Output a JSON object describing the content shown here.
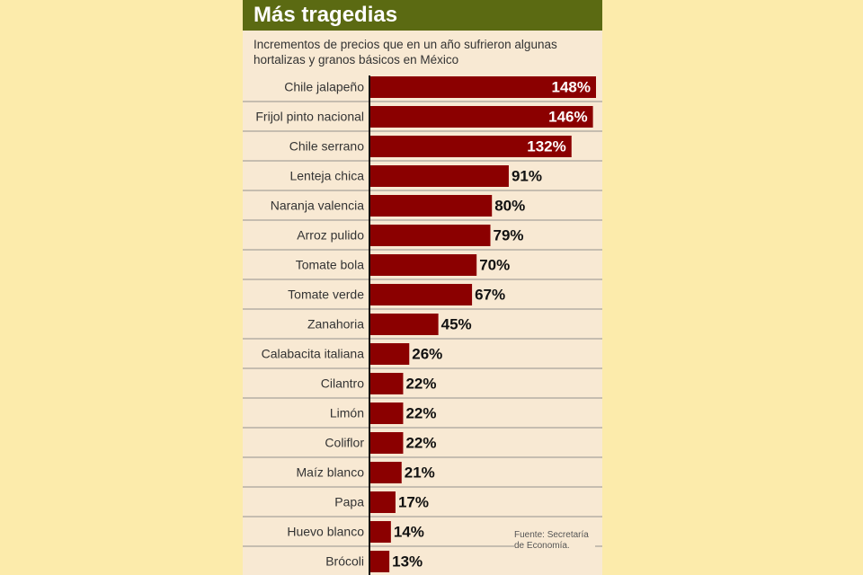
{
  "chart_data": {
    "type": "bar",
    "orientation": "horizontal",
    "title": "Más tragedias",
    "subtitle": "Incrementos de precios que en un año sufrieron algunas hortalizas y granos básicos en México",
    "categories": [
      "Chile jalapeño",
      "Frijol pinto nacional",
      "Chile serrano",
      "Lenteja chica",
      "Naranja valencia",
      "Arroz pulido",
      "Tomate bola",
      "Tomate verde",
      "Zanahoria",
      "Calabacita italiana",
      "Cilantro",
      "Limón",
      "Coliflor",
      "Maíz blanco",
      "Papa",
      "Huevo blanco",
      "Brócoli"
    ],
    "values": [
      148,
      146,
      132,
      91,
      80,
      79,
      70,
      67,
      45,
      26,
      22,
      22,
      22,
      21,
      17,
      14,
      13
    ],
    "value_suffix": "%",
    "xlim": [
      0,
      150
    ],
    "bar_color": "#8b0000",
    "source": [
      "Fuente: Secretaría",
      "de Economía."
    ]
  }
}
